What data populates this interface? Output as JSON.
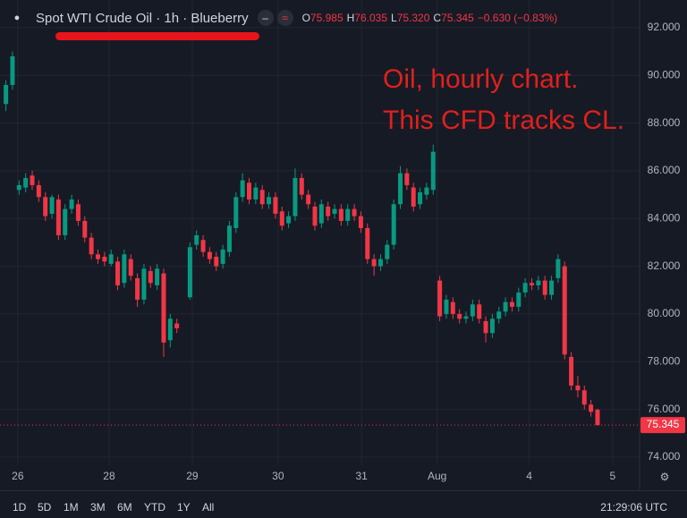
{
  "chart_data": {
    "type": "candlestick",
    "title": "Spot WTI Crude Oil · 1h · Blueberry",
    "legend_values": [
      {
        "key": "O",
        "value": "75.985"
      },
      {
        "key": "H",
        "value": "76.035"
      },
      {
        "key": "L",
        "value": "75.320"
      },
      {
        "key": "C",
        "value": "75.345"
      }
    ],
    "change": "−0.630 (−0.83%)",
    "annotations": [
      "Oil, hourly chart.",
      "This CFD tracks CL."
    ],
    "up_color": "#089981",
    "down_color": "#f23645",
    "grid": true,
    "xlim": [
      -1.9,
      95.4
    ],
    "xticks": [
      {
        "value": 0.8,
        "label": "26"
      },
      {
        "value": 14.7,
        "label": "28"
      },
      {
        "value": 27.35,
        "label": "29"
      },
      {
        "value": 40.4,
        "label": "30"
      },
      {
        "value": 53.1,
        "label": "31"
      },
      {
        "value": 64.6,
        "label": "Aug"
      },
      {
        "value": 78.6,
        "label": "4"
      },
      {
        "value": 91.3,
        "label": "5"
      }
    ],
    "ylim": [
      73.66,
      93.16
    ],
    "yticks": [
      {
        "value": 74,
        "label": "74.000"
      },
      {
        "value": 76,
        "label": "76.000"
      },
      {
        "value": 78,
        "label": "78.000"
      },
      {
        "value": 80,
        "label": "80.000"
      },
      {
        "value": 82,
        "label": "82.000"
      },
      {
        "value": 84,
        "label": "84.000"
      },
      {
        "value": 86,
        "label": "86.000"
      },
      {
        "value": 88,
        "label": "88.000"
      },
      {
        "value": 90,
        "label": "90.000"
      },
      {
        "value": 92,
        "label": "92.000"
      }
    ],
    "x": [
      -1,
      0,
      1,
      2,
      3,
      4,
      5,
      6,
      7,
      8,
      9,
      10,
      11,
      12,
      13,
      14,
      15,
      16,
      17,
      18,
      19,
      20,
      21,
      22,
      23,
      24,
      25,
      27,
      28,
      29,
      30,
      31,
      32,
      33,
      34,
      35,
      36,
      37,
      38,
      39,
      40,
      41,
      42,
      43,
      44,
      45,
      46,
      47,
      48,
      49,
      50,
      51,
      52,
      53,
      54,
      55,
      56,
      57,
      58,
      59,
      60,
      61,
      62,
      63,
      64,
      65,
      66,
      67,
      68,
      69,
      70,
      71,
      72,
      73,
      74,
      75,
      76,
      77,
      78,
      79,
      80,
      81,
      82,
      83,
      84,
      85,
      86,
      87,
      88,
      89
    ],
    "series": [
      {
        "name": "Spot WTI Crude Oil",
        "open": [
          88.8,
          89.6,
          85.2,
          85.3,
          85.8,
          85.4,
          84.9,
          84.2,
          84.8,
          83.3,
          84.4,
          84.6,
          83.9,
          83.2,
          82.5,
          82.4,
          82.1,
          82.2,
          81.3,
          82.3,
          81.5,
          80.6,
          81.8,
          81.2,
          81.7,
          78.9,
          79.6,
          80.7,
          82.9,
          83.1,
          82.6,
          82.4,
          82.1,
          82.6,
          83.6,
          84.9,
          85.5,
          84.8,
          85.2,
          84.6,
          84.9,
          84.3,
          83.8,
          84.1,
          85.7,
          85.0,
          84.5,
          83.8,
          84.5,
          84.2,
          84.4,
          83.9,
          84.4,
          84.1,
          83.6,
          82.3,
          82.0,
          82.3,
          82.9,
          84.6,
          85.9,
          85.3,
          84.6,
          85.0,
          85.2,
          81.4,
          80.0,
          80.5,
          80.0,
          79.8,
          79.9,
          80.4,
          79.7,
          79.2,
          79.8,
          80.1,
          80.5,
          80.3,
          80.9,
          81.3,
          81.2,
          81.4,
          80.8,
          81.5,
          82.0,
          78.2,
          77.0,
          76.8,
          76.2,
          75.985
        ],
        "high": [
          89.8,
          91.0,
          85.6,
          85.9,
          86.0,
          85.6,
          85.1,
          85.0,
          85.0,
          84.6,
          85.0,
          84.8,
          84.1,
          83.4,
          82.7,
          82.6,
          82.7,
          82.4,
          82.7,
          82.5,
          81.7,
          82.1,
          82.0,
          82.1,
          81.9,
          80.0,
          79.8,
          83.0,
          83.5,
          83.3,
          82.8,
          82.6,
          82.9,
          83.9,
          85.1,
          85.9,
          85.7,
          85.5,
          85.4,
          85.1,
          85.1,
          84.5,
          84.3,
          86.1,
          85.9,
          85.2,
          84.7,
          84.8,
          84.7,
          84.6,
          84.6,
          84.6,
          84.6,
          84.3,
          83.8,
          82.5,
          82.5,
          83.1,
          84.8,
          86.2,
          86.1,
          85.5,
          85.3,
          85.5,
          87.1,
          81.6,
          80.8,
          80.7,
          80.2,
          80.1,
          80.6,
          80.6,
          79.9,
          80.0,
          80.3,
          80.7,
          80.7,
          81.1,
          81.5,
          81.5,
          81.6,
          81.6,
          81.6,
          82.5,
          82.2,
          78.4,
          77.4,
          77.0,
          76.4,
          76.035
        ],
        "low": [
          88.5,
          89.4,
          85.0,
          85.1,
          85.2,
          84.7,
          83.9,
          84.0,
          83.1,
          83.1,
          84.2,
          83.7,
          83.0,
          82.3,
          82.1,
          82.0,
          82.0,
          81.0,
          81.1,
          81.4,
          80.3,
          80.4,
          81.1,
          81.0,
          78.2,
          78.6,
          79.2,
          80.6,
          82.7,
          82.4,
          82.1,
          81.8,
          81.9,
          82.4,
          83.4,
          84.7,
          84.6,
          84.6,
          84.4,
          84.4,
          84.0,
          83.5,
          83.6,
          83.9,
          84.8,
          84.4,
          83.5,
          83.6,
          83.9,
          84.0,
          83.7,
          83.7,
          83.9,
          83.4,
          82.1,
          81.6,
          81.8,
          82.1,
          82.7,
          84.4,
          85.2,
          84.3,
          84.4,
          84.8,
          85.0,
          79.7,
          79.8,
          79.8,
          79.6,
          79.6,
          79.7,
          79.6,
          78.8,
          79.0,
          79.6,
          79.9,
          80.1,
          80.1,
          80.7,
          81.0,
          81.0,
          80.6,
          80.6,
          81.3,
          78.1,
          76.8,
          76.5,
          76.0,
          75.7,
          75.32
        ],
        "close": [
          89.6,
          90.8,
          85.4,
          85.7,
          85.4,
          84.9,
          84.1,
          84.9,
          83.3,
          84.4,
          84.8,
          83.9,
          83.2,
          82.5,
          82.3,
          82.2,
          82.5,
          81.2,
          82.5,
          81.6,
          80.6,
          81.9,
          81.3,
          81.9,
          78.8,
          79.8,
          79.4,
          82.8,
          83.3,
          82.6,
          82.3,
          82.0,
          82.7,
          83.7,
          84.9,
          85.6,
          84.8,
          85.3,
          84.6,
          84.9,
          84.2,
          83.7,
          84.1,
          85.7,
          85.0,
          84.6,
          83.7,
          84.6,
          84.1,
          84.4,
          83.9,
          84.4,
          84.1,
          83.6,
          82.3,
          82.0,
          82.3,
          82.9,
          84.6,
          85.9,
          85.4,
          84.5,
          85.1,
          85.3,
          86.8,
          79.9,
          80.6,
          80.0,
          79.8,
          79.9,
          80.4,
          79.8,
          79.2,
          79.8,
          80.1,
          80.5,
          80.3,
          80.9,
          81.3,
          81.2,
          81.4,
          80.8,
          81.4,
          82.3,
          78.3,
          77.0,
          76.8,
          76.2,
          75.9,
          75.345
        ]
      }
    ]
  },
  "toolbar": {
    "ranges": [
      "1D",
      "5D",
      "1M",
      "3M",
      "6M",
      "YTD",
      "1Y",
      "All"
    ],
    "clock": "21:29:06 UTC"
  }
}
